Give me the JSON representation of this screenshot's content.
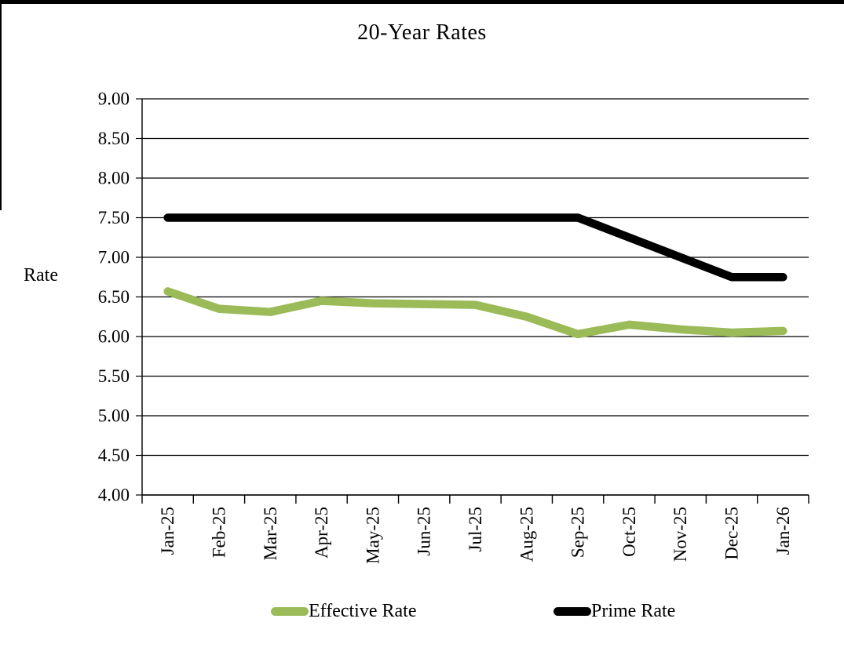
{
  "title": "20-Year Rates",
  "y_axis_title": "Rate",
  "colors": {
    "effective_rate": "#9BBB59",
    "prime_rate": "#000000",
    "axis": "#000000",
    "background": "#FFFFFF"
  },
  "legend": {
    "items": [
      {
        "label": "Effective Rate",
        "color": "#9BBB59"
      },
      {
        "label": "Prime Rate",
        "color": "#000000"
      }
    ]
  },
  "chart_data": {
    "type": "line",
    "title": "20-Year Rates",
    "xlabel": "",
    "ylabel": "Rate",
    "categories": [
      "Jan-25",
      "Feb-25",
      "Mar-25",
      "Apr-25",
      "May-25",
      "Jun-25",
      "Jul-25",
      "Aug-25",
      "Sep-25",
      "Oct-25",
      "Nov-25",
      "Dec-25",
      "Jan-26"
    ],
    "series": [
      {
        "name": "Effective Rate",
        "color": "#9BBB59",
        "values": [
          6.57,
          6.35,
          6.31,
          6.45,
          6.42,
          6.41,
          6.4,
          6.25,
          6.03,
          6.15,
          6.09,
          6.05,
          6.07
        ]
      },
      {
        "name": "Prime Rate",
        "color": "#000000",
        "values": [
          7.5,
          7.5,
          7.5,
          7.5,
          7.5,
          7.5,
          7.5,
          7.5,
          7.5,
          7.25,
          7.0,
          6.75,
          6.75
        ]
      }
    ],
    "ylim": [
      4.0,
      9.0
    ],
    "ytick_step": 0.5,
    "ytick_labels": [
      "4.00",
      "4.50",
      "5.00",
      "5.50",
      "6.00",
      "6.50",
      "7.00",
      "7.50",
      "8.00",
      "8.50",
      "9.00"
    ],
    "grid": true,
    "legend_position": "bottom"
  }
}
